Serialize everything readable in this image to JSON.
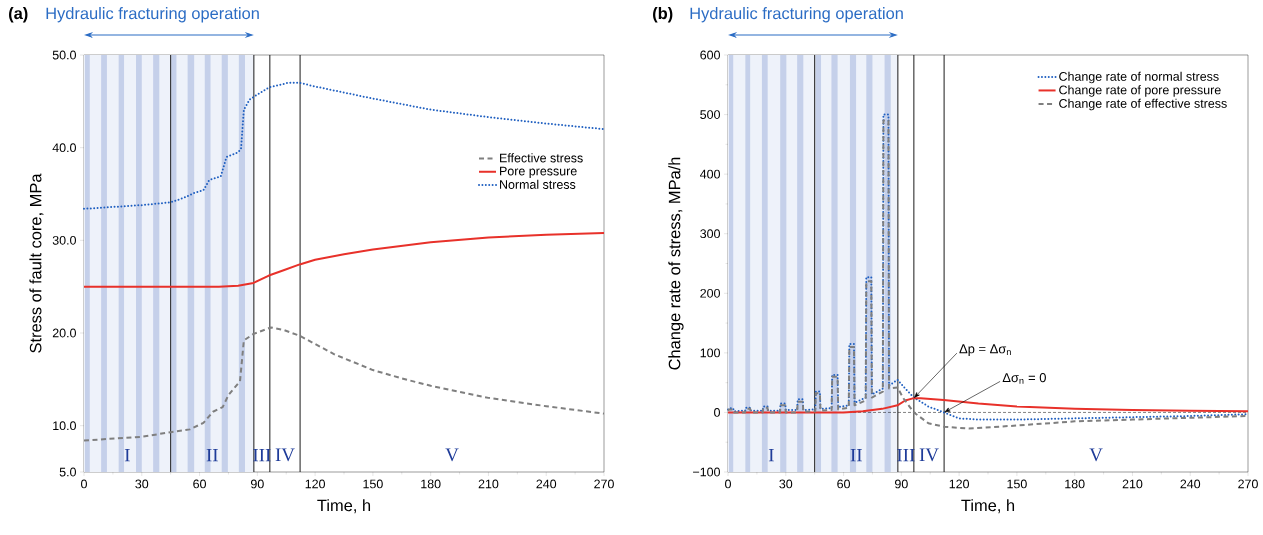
{
  "chart_data": [
    {
      "type": "line",
      "title": "(a)",
      "subtitle": "Hydraulic fracturing operation",
      "xlabel": "Time, h",
      "ylabel": "Stress of fault core, MPa",
      "xlim": [
        0,
        270
      ],
      "xticks": [
        0,
        30,
        60,
        90,
        120,
        150,
        180,
        210,
        240,
        270
      ],
      "ylim": [
        5,
        50
      ],
      "yticks": [
        {
          "value": 5,
          "label": "5.0"
        },
        {
          "value": 10,
          "label": "10.0"
        },
        {
          "value": 20,
          "label": "20.0"
        },
        {
          "value": 30,
          "label": "30.0"
        },
        {
          "value": 40,
          "label": "40.0"
        },
        {
          "value": 50,
          "label": "50.0"
        }
      ],
      "legend": "right",
      "series": [
        {
          "name": "Effective stress",
          "color": "#7f7f7f",
          "line_style": "dashed",
          "x": [
            0,
            30,
            45,
            55,
            62,
            67,
            72,
            75,
            81,
            83,
            88,
            97,
            104,
            112,
            130,
            150,
            165,
            180,
            210,
            240,
            270
          ],
          "values": [
            8.4,
            8.8,
            9.3,
            9.6,
            10.3,
            11.5,
            12.0,
            13.3,
            14.8,
            19.2,
            19.9,
            20.6,
            20.3,
            19.7,
            17.7,
            16.0,
            15.1,
            14.3,
            13.0,
            12.1,
            11.3
          ]
        },
        {
          "name": "Pore pressure",
          "color": "#e8312a",
          "line_style": "solid",
          "x": [
            0,
            40,
            70,
            80,
            88,
            96,
            104,
            112,
            120,
            135,
            150,
            180,
            210,
            240,
            270
          ],
          "values": [
            25.0,
            25.0,
            25.0,
            25.1,
            25.4,
            26.2,
            26.8,
            27.4,
            27.9,
            28.5,
            29.0,
            29.8,
            30.3,
            30.6,
            30.8
          ]
        },
        {
          "name": "Normal stress",
          "color": "#1f5fc0",
          "line_style": "dotted",
          "x": [
            0,
            30,
            45,
            52,
            57,
            62,
            65,
            71,
            74,
            79,
            81.5,
            83,
            86,
            96,
            106,
            112,
            120,
            150,
            180,
            210,
            240,
            270
          ],
          "values": [
            33.4,
            33.8,
            34.1,
            34.6,
            35.1,
            35.4,
            36.5,
            36.9,
            39.0,
            39.4,
            39.8,
            44.1,
            45.2,
            46.5,
            47.0,
            47.0,
            46.6,
            45.3,
            44.1,
            43.3,
            42.6,
            42.0
          ]
        }
      ],
      "bands": [
        {
          "axis": "x",
          "from": 0,
          "to": 88.2,
          "color": "#eef2fa"
        },
        {
          "axis": "x",
          "from": 0.5,
          "to": 3.0,
          "color": "#c5d0ea"
        },
        {
          "axis": "x",
          "from": 8.9,
          "to": 11.9,
          "color": "#c5d0ea"
        },
        {
          "axis": "x",
          "from": 18.0,
          "to": 20.8,
          "color": "#c5d0ea"
        },
        {
          "axis": "x",
          "from": 27.0,
          "to": 30.0,
          "color": "#c5d0ea"
        },
        {
          "axis": "x",
          "from": 35.9,
          "to": 39.1,
          "color": "#c5d0ea"
        },
        {
          "axis": "x",
          "from": 45.3,
          "to": 48.0,
          "color": "#c5d0ea"
        },
        {
          "axis": "x",
          "from": 53.8,
          "to": 57.2,
          "color": "#c5d0ea"
        },
        {
          "axis": "x",
          "from": 62.7,
          "to": 65.7,
          "color": "#c5d0ea"
        },
        {
          "axis": "x",
          "from": 71.5,
          "to": 74.7,
          "color": "#c5d0ea"
        },
        {
          "axis": "x",
          "from": 80.4,
          "to": 83.6,
          "color": "#c5d0ea"
        }
      ],
      "annotations": [
        "I",
        "II",
        "III",
        "IV",
        "V"
      ],
      "ref_lines": [
        {
          "axis": "x",
          "value": 45,
          "color": "#000000",
          "line_style": "solid"
        },
        {
          "axis": "x",
          "value": 88.2,
          "color": "#000000",
          "line_style": "solid"
        },
        {
          "axis": "x",
          "value": 96.5,
          "color": "#000000",
          "line_style": "solid"
        },
        {
          "axis": "x",
          "value": 112.2,
          "color": "#000000",
          "line_style": "solid"
        }
      ]
    },
    {
      "type": "line",
      "title": "(b)",
      "subtitle": "Hydraulic fracturing operation",
      "xlabel": "Time, h",
      "ylabel": "Change rate of stress, MPa/h",
      "xlim": [
        0,
        270
      ],
      "xticks": [
        0,
        30,
        60,
        90,
        120,
        150,
        180,
        210,
        240,
        270
      ],
      "ylim": [
        -100,
        600
      ],
      "yticks": [
        {
          "value": -100,
          "label": "−100"
        },
        0,
        100,
        200,
        300,
        400,
        500,
        600
      ],
      "legend": "top right",
      "series": [
        {
          "name": "Change rate of normal stress",
          "color": "#1f5fc0",
          "line_style": "dotted",
          "x": [
            0,
            0.5,
            2.7,
            3,
            8.9,
            9.2,
            11.5,
            11.9,
            18,
            18.3,
            20.5,
            20.8,
            27,
            27.3,
            29.7,
            30,
            35.9,
            36.2,
            38.8,
            39.1,
            45.3,
            45.6,
            47.7,
            48,
            53.8,
            54.1,
            56.9,
            57.2,
            62.7,
            63,
            65.4,
            65.7,
            71.5,
            71.8,
            74.4,
            74.7,
            80.4,
            80.7,
            83.3,
            83.6,
            88,
            92,
            96.5,
            104,
            112,
            120,
            130,
            150,
            180,
            210,
            240,
            270
          ],
          "values": [
            5,
            7,
            7,
            2,
            3,
            8,
            8,
            3,
            3,
            10,
            10,
            3,
            3,
            15,
            15,
            4,
            4,
            22,
            22,
            4,
            5,
            35,
            35,
            6,
            7,
            63,
            63,
            9,
            12,
            115,
            115,
            16,
            25,
            227,
            227,
            30,
            40,
            500,
            500,
            45,
            55,
            40,
            25,
            10,
            0,
            -10,
            -12,
            -12,
            -10,
            -8,
            -6,
            -3
          ]
        },
        {
          "name": "Change rate of pore pressure",
          "color": "#e8312a",
          "line_style": "solid",
          "x": [
            0,
            60,
            70,
            80,
            88,
            92,
            96.5,
            100,
            112,
            130,
            150,
            180,
            210,
            240,
            270
          ],
          "values": [
            0,
            0,
            2,
            6,
            12,
            20,
            24,
            24,
            21,
            15,
            10,
            6,
            4,
            3,
            2
          ]
        },
        {
          "name": "Change rate of effective stress",
          "color": "#7f7f7f",
          "line_style": "dashed",
          "x": [
            0,
            0.5,
            2.7,
            3,
            8.9,
            9.2,
            11.5,
            11.9,
            18,
            18.3,
            20.5,
            20.8,
            27,
            27.3,
            29.7,
            30,
            35.9,
            36.2,
            38.8,
            39.1,
            45.3,
            45.6,
            47.7,
            48,
            53.8,
            54.1,
            56.9,
            57.2,
            62.7,
            63,
            65.4,
            65.7,
            71.5,
            71.8,
            74.4,
            74.7,
            80.4,
            80.7,
            83.3,
            83.6,
            88,
            91,
            96.5,
            104,
            112,
            125,
            150,
            180,
            210,
            240,
            270
          ],
          "values": [
            3,
            5,
            5,
            0,
            0,
            6,
            6,
            0,
            0,
            8,
            8,
            0,
            0,
            12,
            12,
            0,
            0,
            18,
            18,
            1,
            2,
            32,
            32,
            3,
            4,
            60,
            60,
            5,
            8,
            110,
            110,
            12,
            20,
            220,
            220,
            25,
            35,
            490,
            490,
            40,
            42,
            24,
            0,
            -18,
            -24,
            -27,
            -22,
            -15,
            -12,
            -9,
            -6
          ]
        }
      ],
      "bands": [
        {
          "axis": "x",
          "from": 0,
          "to": 88.2,
          "color": "#eef2fa"
        },
        {
          "axis": "x",
          "from": 0.5,
          "to": 2.7,
          "color": "#c5d0ea"
        },
        {
          "axis": "x",
          "from": 9.0,
          "to": 11.5,
          "color": "#c5d0ea"
        },
        {
          "axis": "x",
          "from": 17.6,
          "to": 20.6,
          "color": "#c5d0ea"
        },
        {
          "axis": "x",
          "from": 27.1,
          "to": 30.3,
          "color": "#c5d0ea"
        },
        {
          "axis": "x",
          "from": 35.9,
          "to": 39.1,
          "color": "#c5d0ea"
        },
        {
          "axis": "x",
          "from": 45.5,
          "to": 48.3,
          "color": "#c5d0ea"
        },
        {
          "axis": "x",
          "from": 53.7,
          "to": 56.9,
          "color": "#c5d0ea"
        },
        {
          "axis": "x",
          "from": 63.3,
          "to": 66.5,
          "color": "#c5d0ea"
        },
        {
          "axis": "x",
          "from": 71.8,
          "to": 75.0,
          "color": "#c5d0ea"
        },
        {
          "axis": "x",
          "from": 81.3,
          "to": 84.5,
          "color": "#c5d0ea"
        }
      ],
      "ref_lines": [
        {
          "axis": "x",
          "value": 45,
          "color": "#000000",
          "line_style": "solid"
        },
        {
          "axis": "x",
          "value": 88.2,
          "color": "#000000",
          "line_style": "solid"
        },
        {
          "axis": "x",
          "value": 96.5,
          "color": "#000000",
          "line_style": "solid"
        },
        {
          "axis": "x",
          "value": 112.2,
          "color": "#000000",
          "line_style": "solid"
        },
        {
          "axis": "y",
          "value": 0,
          "color": "#000000",
          "line_style": "dashed"
        }
      ],
      "annotations": [
        {
          "text": "Δp = Δσ$_{n}$",
          "x": 96.5,
          "y": 24
        },
        {
          "text": "Δσ$_{n}$ = 0",
          "x": 112.2,
          "y": 0
        },
        "I",
        "II",
        "III",
        "IV",
        "V"
      ]
    }
  ]
}
